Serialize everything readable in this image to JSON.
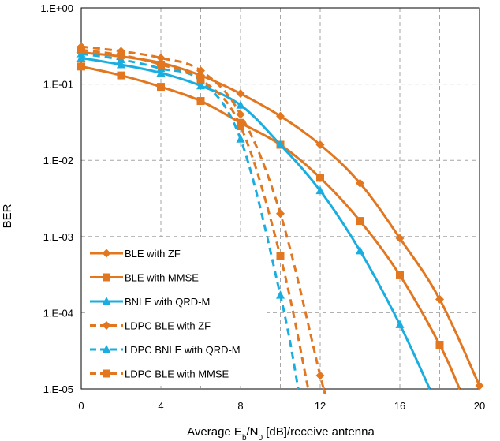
{
  "chart_data": {
    "type": "line",
    "title": "",
    "xlabel": "Average E_b/N_0 [dB]/receive antenna",
    "xlabel_parts": [
      {
        "text": "Average E",
        "sub": false
      },
      {
        "text": "b",
        "sub": true
      },
      {
        "text": "/N",
        "sub": false
      },
      {
        "text": "0",
        "sub": true
      },
      {
        "text": " [dB]/receive antenna",
        "sub": false
      }
    ],
    "ylabel": "BER",
    "x_ticks": [
      "0",
      "4",
      "8",
      "12",
      "16",
      "20"
    ],
    "y_ticks": [
      "1.E+00",
      "1.E-01",
      "1.E-02",
      "1.E-03",
      "1.E-04",
      "1.E-05"
    ],
    "xlim": [
      0,
      20
    ],
    "ylim": [
      1e-05,
      1
    ],
    "y_scale": "log",
    "grid": true,
    "legend_position": "bottom-left",
    "colors": {
      "orange": "#E2771F",
      "blue": "#1AAEE0",
      "grid": "#A6A6A6"
    },
    "series": [
      {
        "name": "BLE with ZF",
        "color": "#E2771F",
        "dashed": false,
        "marker": "diamond",
        "x": [
          0,
          2,
          4,
          6,
          8,
          10,
          12,
          14,
          16,
          18,
          20
        ],
        "y": [
          0.26,
          0.23,
          0.19,
          0.13,
          0.075,
          0.038,
          0.016,
          0.005,
          0.00095,
          0.00015,
          1.1e-05
        ]
      },
      {
        "name": "BLE with MMSE",
        "color": "#E2771F",
        "dashed": false,
        "marker": "square",
        "x": [
          0,
          2,
          4,
          6,
          8,
          10,
          12,
          14,
          16,
          18,
          19
        ],
        "y": [
          0.17,
          0.13,
          0.092,
          0.06,
          0.031,
          0.016,
          0.0059,
          0.0016,
          0.00031,
          3.8e-05,
          1e-05
        ]
      },
      {
        "name": "BNLE with QRD-M",
        "color": "#1AAEE0",
        "dashed": false,
        "marker": "triangle",
        "x": [
          0,
          2,
          4,
          6,
          8,
          10,
          12,
          14,
          16,
          17.5
        ],
        "y": [
          0.22,
          0.18,
          0.14,
          0.095,
          0.053,
          0.016,
          0.004,
          0.00065,
          7e-05,
          1e-05
        ]
      },
      {
        "name": "LDPC BLE with ZF",
        "color": "#E2771F",
        "dashed": true,
        "marker": "diamond",
        "x": [
          0,
          2,
          4,
          6,
          8,
          10,
          12,
          12.2
        ],
        "y": [
          0.31,
          0.27,
          0.22,
          0.15,
          0.04,
          0.002,
          1.5e-05,
          1e-05
        ]
      },
      {
        "name": "LDPC BNLE with QRD-M",
        "color": "#1AAEE0",
        "dashed": true,
        "marker": "triangle",
        "x": [
          0,
          2,
          4,
          6,
          8,
          10,
          10.9
        ],
        "y": [
          0.25,
          0.21,
          0.16,
          0.11,
          0.019,
          0.00017,
          1e-05
        ]
      },
      {
        "name": "LDPC BLE with MMSE",
        "color": "#E2771F",
        "dashed": true,
        "marker": "square",
        "x": [
          0,
          2,
          4,
          6,
          8,
          10,
          11.4
        ],
        "y": [
          0.28,
          0.24,
          0.18,
          0.115,
          0.028,
          0.00055,
          1e-05
        ]
      }
    ]
  }
}
